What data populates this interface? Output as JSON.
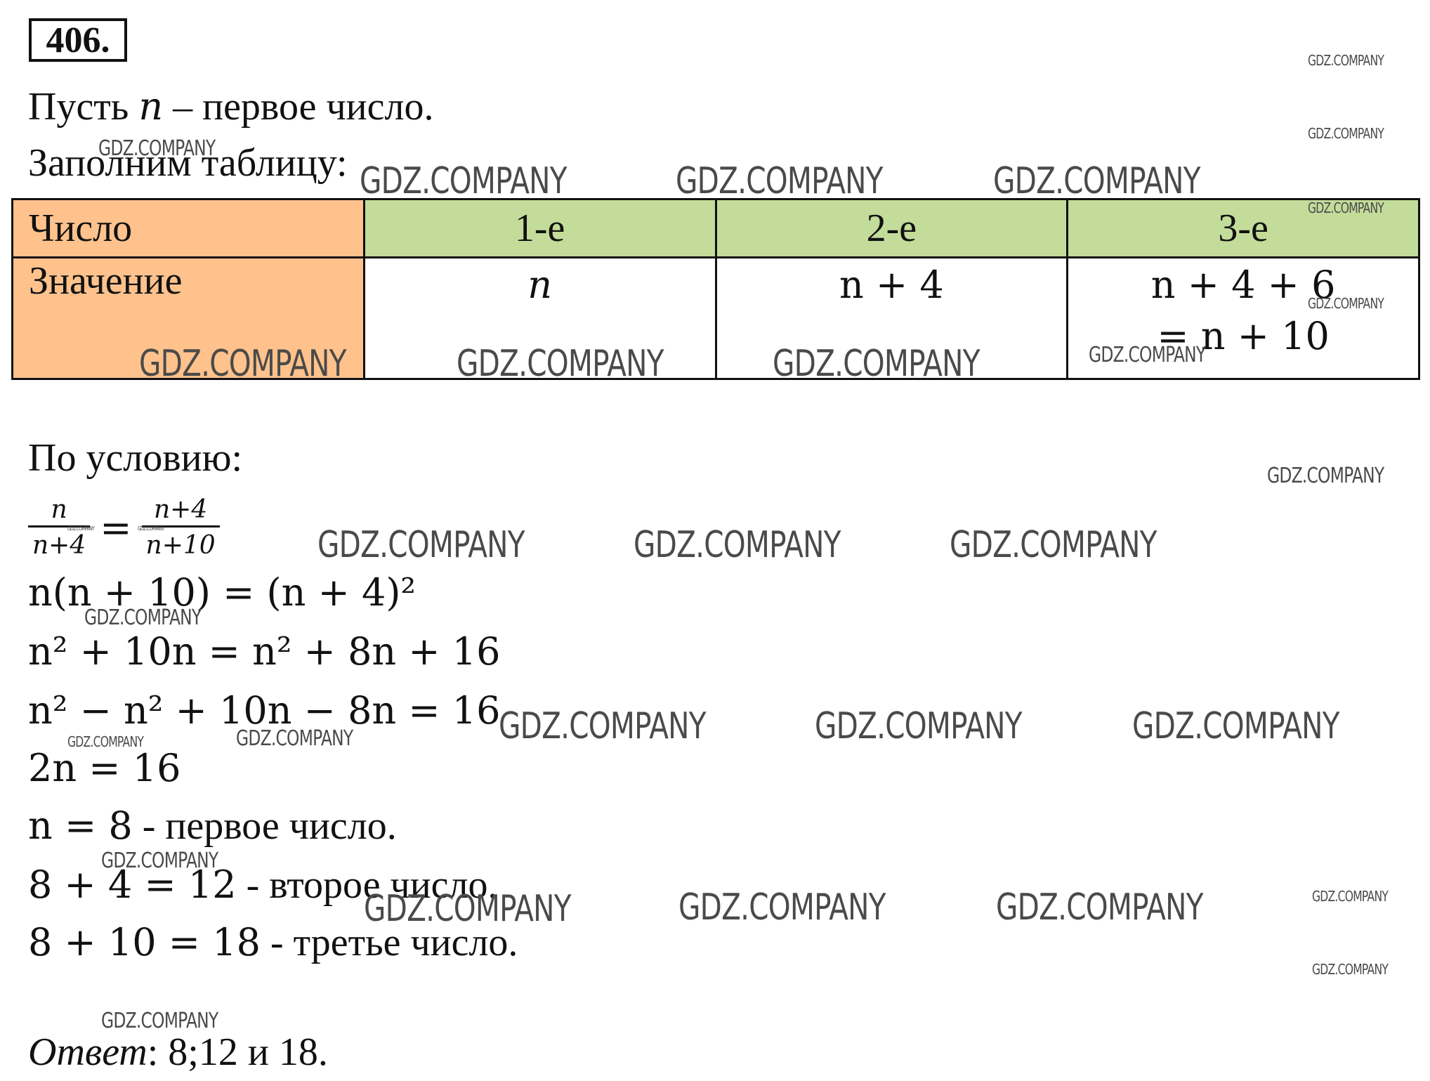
{
  "problem_number": "406.",
  "intro": {
    "line1_a": "Пусть ",
    "line1_var": "n",
    "line1_b": " – первое число.",
    "line2": "Заполним таблицу:"
  },
  "table": {
    "header_label": "Число",
    "value_label": "Значение",
    "columns": [
      "1-е",
      "2-е",
      "3-е"
    ],
    "values": [
      "n",
      "n + 4",
      "n + 4 + 6"
    ],
    "value3_line2": "= n + 10"
  },
  "condition_label": "По условию:",
  "fraction": {
    "left_num": "n",
    "left_den": "n+4",
    "right_num": "n+4",
    "right_den": "n+10",
    "equals": "="
  },
  "equations": [
    "n(n + 10) = (n + 4)²",
    "n² + 10n = n² + 8n + 16",
    "n² − n² + 10n − 8n = 16",
    "2n = 16"
  ],
  "results": [
    {
      "expr": "n = 8",
      "text": " - первое число."
    },
    {
      "expr": "8 + 4 = 12",
      "text": " - второе число."
    },
    {
      "expr": "8 + 10 = 18",
      "text": " - третье число."
    }
  ],
  "answer": {
    "label": "Ответ",
    "text": ": 8;12 и 18."
  },
  "watermark_text": "GDZ.COMPANY"
}
